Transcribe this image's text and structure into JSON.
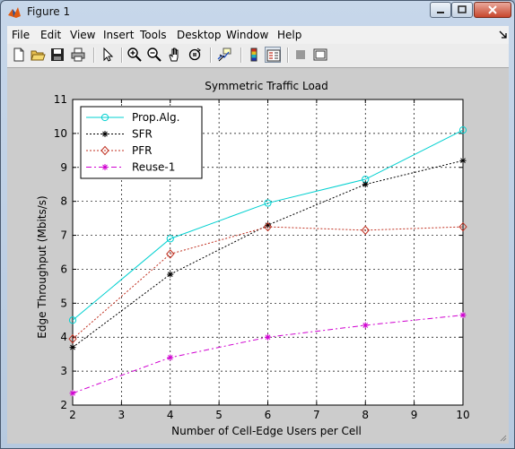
{
  "window": {
    "title": "Figure 1"
  },
  "menu": [
    "File",
    "Edit",
    "View",
    "Insert",
    "Tools",
    "Desktop",
    "Window",
    "Help"
  ],
  "toolbar": {
    "icons": [
      "new-figure-icon",
      "open-file-icon",
      "save-icon",
      "print-icon",
      "pointer-icon",
      "zoom-in-icon",
      "zoom-out-icon",
      "pan-hand-icon",
      "rotate-3d-icon",
      "data-cursor-icon",
      "colorbar-icon",
      "legend-icon",
      "hide-plot-tools-icon",
      "show-plot-tools-icon"
    ]
  },
  "colors": {
    "prop_alg": "#00d0d0",
    "sfr": "#000000",
    "pfr": "#c03020",
    "reuse1": "#d000d0"
  },
  "chart_data": {
    "type": "line",
    "title": "Symmetric Traffic Load",
    "xlabel": "Number of Cell-Edge Users per Cell",
    "ylabel": "Edge Throughput (Mbits/s)",
    "xlim": [
      2,
      10
    ],
    "ylim": [
      2,
      11
    ],
    "xticks": [
      2,
      3,
      4,
      5,
      6,
      7,
      8,
      9,
      10
    ],
    "yticks": [
      2,
      3,
      4,
      5,
      6,
      7,
      8,
      9,
      10,
      11
    ],
    "grid": true,
    "legend_position": "top-left",
    "x": [
      2,
      4,
      6,
      8,
      10
    ],
    "series": [
      {
        "name": "Prop.Alg.",
        "values": [
          4.5,
          6.9,
          7.95,
          8.65,
          10.1
        ],
        "color": "#00d0d0",
        "dash": "solid",
        "marker": "circle"
      },
      {
        "name": "SFR",
        "values": [
          3.7,
          5.85,
          7.3,
          8.5,
          9.2
        ],
        "color": "#000000",
        "dash": "dotted",
        "marker": "star"
      },
      {
        "name": "PFR",
        "values": [
          3.95,
          6.45,
          7.25,
          7.15,
          7.25
        ],
        "color": "#c03020",
        "dash": "dotted",
        "marker": "diamond"
      },
      {
        "name": "Reuse-1",
        "values": [
          2.35,
          3.4,
          4.0,
          4.35,
          4.65
        ],
        "color": "#d000d0",
        "dash": "dashdot",
        "marker": "star"
      }
    ]
  }
}
